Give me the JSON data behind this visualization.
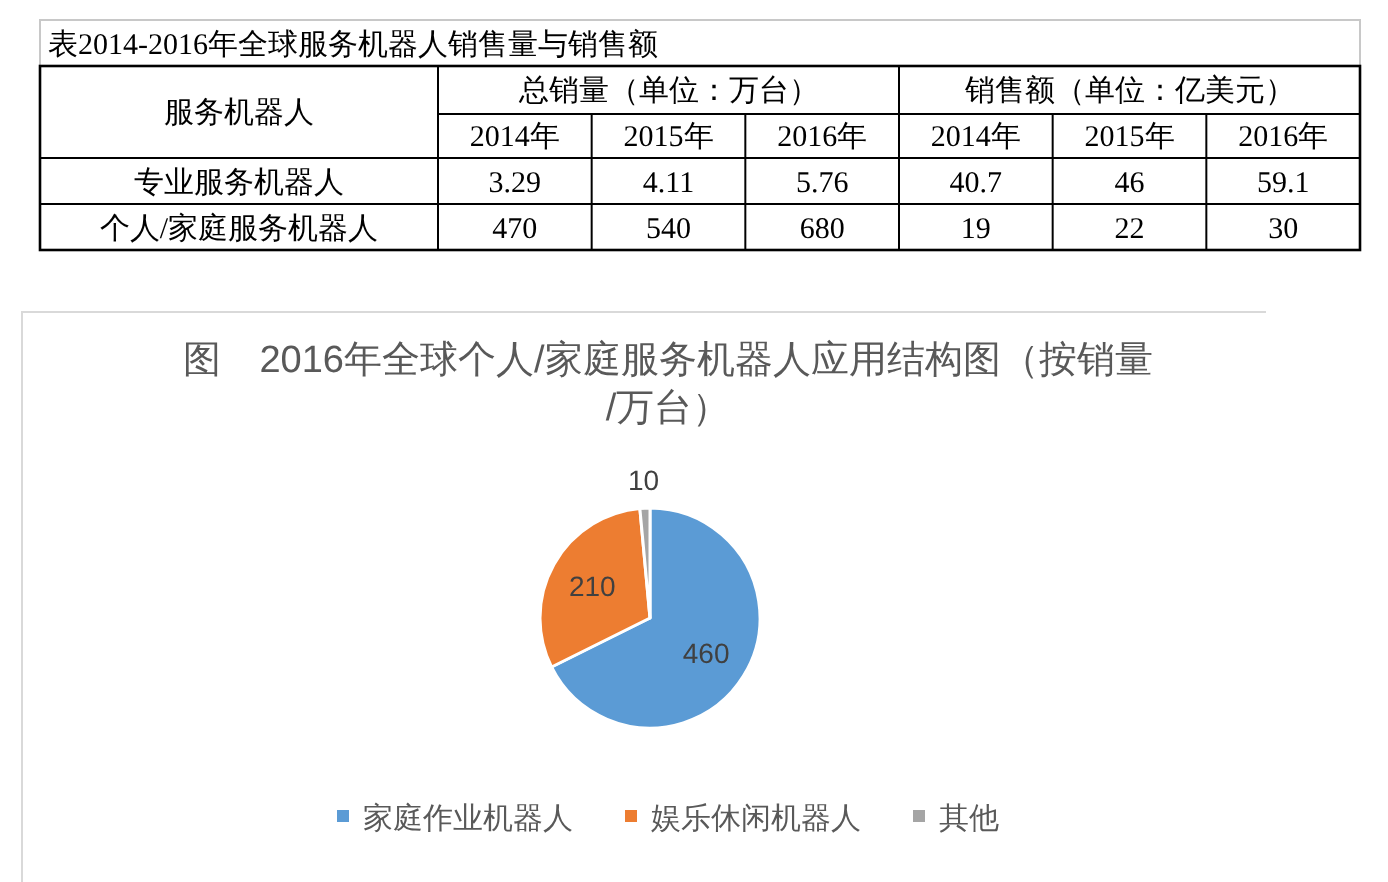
{
  "chart_data": [
    {
      "type": "other",
      "title": "表2014-2016年全球服务机器人销售量与销售额",
      "ylabel": "服务机器人",
      "annotations": [
        "总销量（单位：万台）",
        "销售额（单位：亿美元）"
      ],
      "categories": [
        "2014年",
        "2015年",
        "2016年",
        "2014年",
        "2015年",
        "2016年"
      ],
      "series": [
        {
          "name": "专业服务机器人",
          "values": [
            3.29,
            4.11,
            5.76,
            40.7,
            46,
            59.1
          ]
        },
        {
          "name": "个人/家庭服务机器人",
          "values": [
            470,
            540,
            680,
            19,
            22,
            30
          ]
        }
      ],
      "data_labels": true
    },
    {
      "type": "pie",
      "title": "图　2016年全球个人/家庭服务机器人应用结构图（按销量/万台）",
      "categories": [
        "家庭作业机器人",
        "娱乐休闲机器人",
        "其他"
      ],
      "values": [
        460,
        210,
        10
      ],
      "colors": [
        "#5b9bd5",
        "#ed7d31",
        "#a5a5a5"
      ],
      "data_labels": true,
      "legend": "bottom"
    }
  ]
}
